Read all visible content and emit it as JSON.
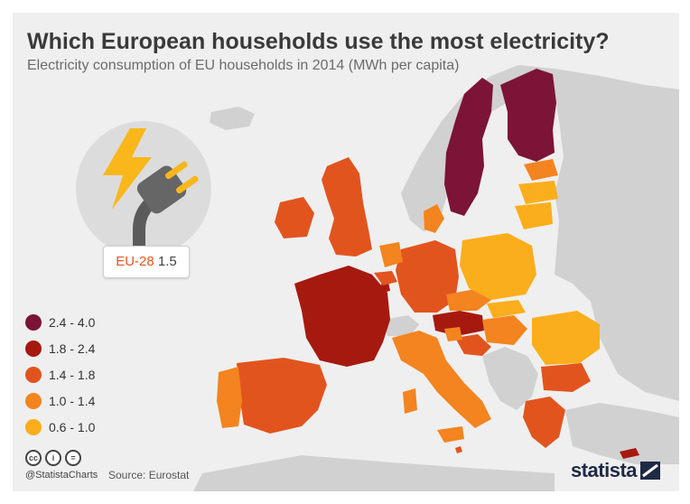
{
  "header": {
    "title": "Which European households use the most electricity?",
    "subtitle": "Electricity consumption of EU households in 2014 (MWh per capita)"
  },
  "eu_average": {
    "label": "EU-28",
    "value": "1.5"
  },
  "legend": [
    {
      "label": "2.4 - 4.0",
      "color": "#7b1436"
    },
    {
      "label": "1.8 - 2.4",
      "color": "#a6190f"
    },
    {
      "label": "1.4 - 1.8",
      "color": "#e2541e"
    },
    {
      "label": "1.0 - 1.4",
      "color": "#f3841f"
    },
    {
      "label": "0.6 - 1.0",
      "color": "#fbae1b"
    }
  ],
  "colors": {
    "non_eu": "#d1d1d1",
    "sea": "#efefef",
    "accent": "#e8541e",
    "bolt": "#f9b71b",
    "plug": "#5b5b5b",
    "brand": "#1f2a44"
  },
  "icons": [
    "lightning-bolt-icon",
    "electric-plug-icon",
    "creative-commons-icon",
    "attribution-icon",
    "no-derivatives-icon",
    "statista-logo-icon"
  ],
  "footer": {
    "cc_labels": [
      "cc",
      "i",
      "="
    ],
    "handle": "@StatistaCharts",
    "source": "Source: Eurostat",
    "brand": "statista"
  }
}
